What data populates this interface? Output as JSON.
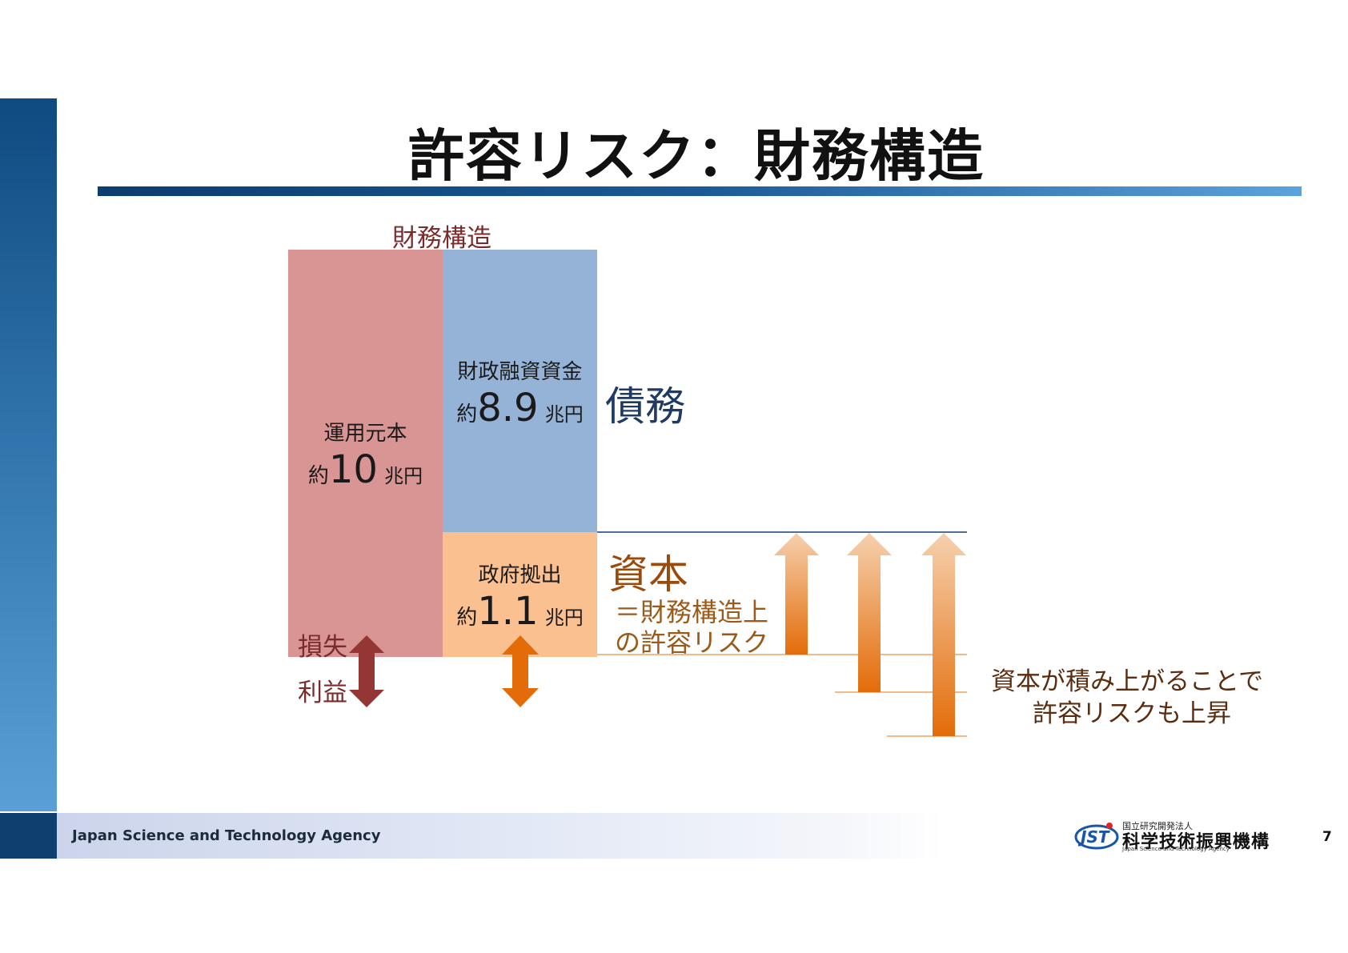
{
  "title": "許容リスク：財務構造",
  "structure_label": "財務構造",
  "principal": {
    "caption": "運用元本",
    "prefix": "約",
    "number": "10",
    "unit": "兆円"
  },
  "loan": {
    "caption": "財政融資資金",
    "prefix": "約",
    "number": "8.9",
    "unit": "兆円"
  },
  "government": {
    "caption": "政府拠出",
    "prefix": "約",
    "number": "1.1",
    "unit": "兆円"
  },
  "debt_label": "債務",
  "capital": {
    "label": "資本",
    "sub_line1": "＝財務構造上",
    "sub_line2": "の許容リスク"
  },
  "loss_label": "損失",
  "profit_label": "利益",
  "note": {
    "line1": "資本が積み上がることで",
    "line2": "許容リスクも上昇"
  },
  "footer": {
    "agency": "Japan Science and Technology Agency",
    "page": "7"
  },
  "logo": {
    "mark": "JST",
    "small": "国立研究開発法人",
    "main": "科学技術振興機構",
    "english": "Japan Science and Technology Agency"
  },
  "colors": {
    "principal": "#d99594",
    "loan": "#95b3d7",
    "government": "#fac090",
    "arrow_dark_red": "#943634",
    "arrow_orange": "#e36c09"
  }
}
